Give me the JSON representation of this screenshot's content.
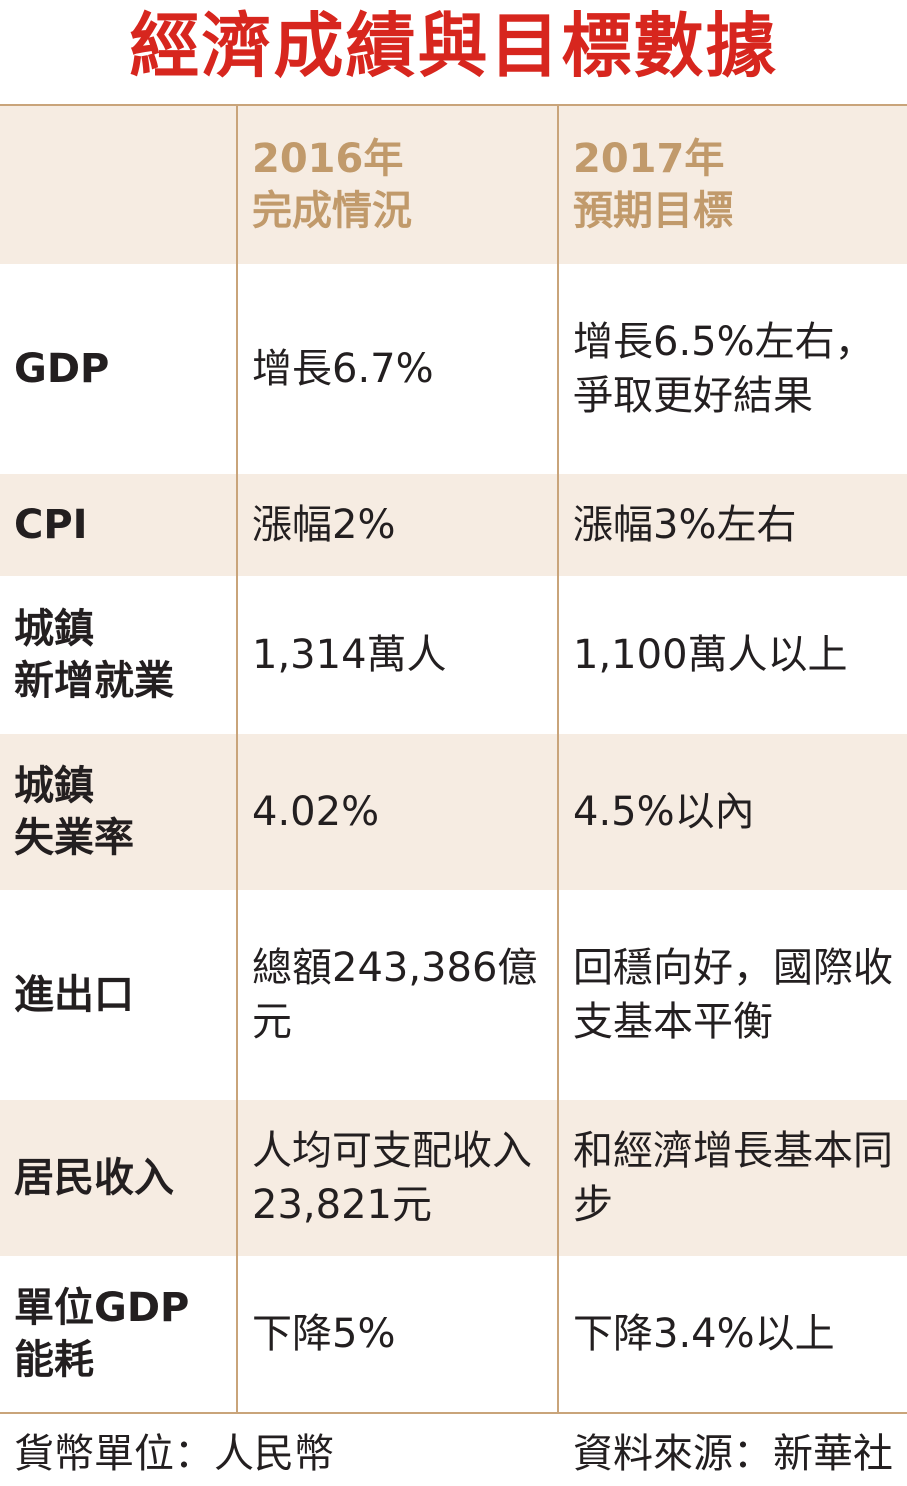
{
  "title": "經濟成績與目標數據",
  "header": {
    "col2_line1": "2016年",
    "col2_line2": "完成情況",
    "col3_line1": "2017年",
    "col3_line2": "預期目標"
  },
  "rows": [
    {
      "label": [
        "GDP"
      ],
      "y2016": "增長6.7%",
      "y2017": "增長6.5%左右，爭取更好結果"
    },
    {
      "label": [
        "CPI"
      ],
      "y2016": "漲幅2%",
      "y2017": "漲幅3%左右"
    },
    {
      "label": [
        "城鎮",
        "新增就業"
      ],
      "y2016": "1,314萬人",
      "y2017": "1,100萬人以上"
    },
    {
      "label": [
        "城鎮",
        "失業率"
      ],
      "y2016": "4.02%",
      "y2017": "4.5%以內"
    },
    {
      "label": [
        "進出口"
      ],
      "y2016": "總額243,386億元",
      "y2017": "回穩向好，國際收支基本平衡"
    },
    {
      "label": [
        "居民收入"
      ],
      "y2016": "人均可支配收入23,821元",
      "y2017": "和經濟增長基本同步"
    },
    {
      "label": [
        "單位GDP",
        "能耗"
      ],
      "y2016": "下降5%",
      "y2017": "下降3.4%以上"
    }
  ],
  "footer": {
    "currency": "貨幣單位：人民幣",
    "source": "資料來源：新華社"
  }
}
